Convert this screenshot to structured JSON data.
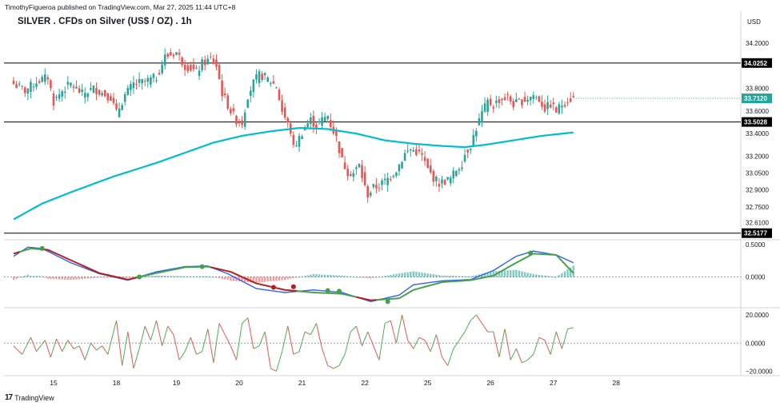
{
  "header": {
    "published": "TimothyFigueroa published on TradingView.com, Mar 27, 2025 11:44 UTC+8",
    "title": "SILVER . CFDs on Silver (US$ / OZ) . 1h",
    "currency": "USD"
  },
  "footer": {
    "logo_text": "TradingView"
  },
  "colors": {
    "bull": "#26a69a",
    "bear": "#ef5350",
    "ema": "#00bcd4",
    "macd": "#2962ff",
    "signal": "#b71c1c",
    "signal_green": "#43a047",
    "hist_pos": "#26a69a",
    "hist_neg": "#ef5350",
    "osc_up": "#4caf50",
    "osc_down": "#ef5350",
    "price_tag": "#000000"
  },
  "chart_data": [
    {
      "type": "candlestick",
      "pane": "price",
      "title": "SILVER . CFDs on Silver (US$ / OZ) . 1h",
      "ylim": [
        32.53,
        34.3
      ],
      "y_ticks": [
        34.2,
        33.8,
        33.6,
        33.4,
        33.2,
        33.05,
        32.9,
        32.75,
        32.61
      ],
      "y_tick_labels": [
        "34.2000",
        "33.8000",
        "33.6000",
        "33.4000",
        "33.2000",
        "33.0500",
        "32.9000",
        "32.7500",
        "32.6100"
      ],
      "x_ticks": [
        {
          "label": "15",
          "bar": 14
        },
        {
          "label": "18",
          "bar": 36
        },
        {
          "label": "19",
          "bar": 57
        },
        {
          "label": "20",
          "bar": 79
        },
        {
          "label": "21",
          "bar": 101
        },
        {
          "label": "22",
          "bar": 123
        },
        {
          "label": "25",
          "bar": 145
        },
        {
          "label": "26",
          "bar": 167
        },
        {
          "label": "27",
          "bar": 189
        },
        {
          "label": "28",
          "bar": 211
        }
      ],
      "horizontal_lines": [
        {
          "value": 34.0252,
          "label": "34.0252"
        },
        {
          "value": 33.5028,
          "label": "33.5028"
        },
        {
          "value": 32.5177,
          "label": "32.5177"
        }
      ],
      "last_price": {
        "value": 33.712,
        "label": "33.7120"
      },
      "close_anchors": [
        [
          0,
          33.84
        ],
        [
          4,
          33.78
        ],
        [
          8,
          33.86
        ],
        [
          12,
          33.9
        ],
        [
          14,
          33.68
        ],
        [
          17,
          33.78
        ],
        [
          20,
          33.84
        ],
        [
          24,
          33.75
        ],
        [
          28,
          33.8
        ],
        [
          31,
          33.76
        ],
        [
          34,
          33.72
        ],
        [
          36,
          33.58
        ],
        [
          39,
          33.74
        ],
        [
          42,
          33.84
        ],
        [
          46,
          33.86
        ],
        [
          50,
          33.9
        ],
        [
          53,
          34.08
        ],
        [
          55,
          34.1
        ],
        [
          57,
          34.12
        ],
        [
          60,
          34.0
        ],
        [
          62,
          33.98
        ],
        [
          64,
          33.94
        ],
        [
          66,
          34.02
        ],
        [
          69,
          34.06
        ],
        [
          71,
          34.0
        ],
        [
          73,
          33.76
        ],
        [
          76,
          33.6
        ],
        [
          78,
          33.52
        ],
        [
          80,
          33.5
        ],
        [
          82,
          33.74
        ],
        [
          84,
          33.85
        ],
        [
          86,
          33.92
        ],
        [
          88,
          33.9
        ],
        [
          90,
          33.86
        ],
        [
          92,
          33.82
        ],
        [
          94,
          33.6
        ],
        [
          97,
          33.42
        ],
        [
          98,
          33.27
        ],
        [
          100,
          33.36
        ],
        [
          102,
          33.46
        ],
        [
          104,
          33.52
        ],
        [
          106,
          33.47
        ],
        [
          108,
          33.52
        ],
        [
          110,
          33.56
        ],
        [
          111,
          33.48
        ],
        [
          113,
          33.36
        ],
        [
          115,
          33.16
        ],
        [
          117,
          33.06
        ],
        [
          119,
          33.05
        ],
        [
          121,
          33.12
        ],
        [
          123,
          32.92
        ],
        [
          124,
          32.86
        ],
        [
          126,
          32.92
        ],
        [
          128,
          32.94
        ],
        [
          131,
          33.0
        ],
        [
          134,
          33.08
        ],
        [
          137,
          33.22
        ],
        [
          139,
          33.26
        ],
        [
          141,
          33.24
        ],
        [
          143,
          33.2
        ],
        [
          145,
          33.08
        ],
        [
          147,
          33.01
        ],
        [
          149,
          32.96
        ],
        [
          151,
          32.98
        ],
        [
          153,
          33.0
        ],
        [
          155,
          33.08
        ],
        [
          157,
          33.14
        ],
        [
          158,
          33.22
        ],
        [
          160,
          33.3
        ],
        [
          162,
          33.45
        ],
        [
          164,
          33.58
        ],
        [
          166,
          33.68
        ],
        [
          168,
          33.65
        ],
        [
          170,
          33.7
        ],
        [
          173,
          33.72
        ],
        [
          175,
          33.66
        ],
        [
          177,
          33.68
        ],
        [
          179,
          33.7
        ],
        [
          182,
          33.74
        ],
        [
          184,
          33.7
        ],
        [
          186,
          33.62
        ],
        [
          188,
          33.66
        ],
        [
          190,
          33.6
        ],
        [
          192,
          33.66
        ],
        [
          194,
          33.7
        ],
        [
          196,
          33.71
        ]
      ],
      "ema_anchors": [
        [
          0,
          32.64
        ],
        [
          10,
          32.78
        ],
        [
          20,
          32.88
        ],
        [
          35,
          33.02
        ],
        [
          50,
          33.14
        ],
        [
          60,
          33.23
        ],
        [
          70,
          33.32
        ],
        [
          80,
          33.38
        ],
        [
          90,
          33.42
        ],
        [
          100,
          33.45
        ],
        [
          110,
          33.44
        ],
        [
          120,
          33.4
        ],
        [
          130,
          33.34
        ],
        [
          140,
          33.31
        ],
        [
          150,
          33.29
        ],
        [
          158,
          33.28
        ],
        [
          165,
          33.3
        ],
        [
          175,
          33.34
        ],
        [
          185,
          33.38
        ],
        [
          196,
          33.41
        ]
      ]
    },
    {
      "type": "line",
      "pane": "macd",
      "y_ticks": [
        0.5,
        0.0
      ],
      "y_tick_labels": [
        "0.5000",
        "0.0000"
      ],
      "ylim": [
        -0.45,
        0.55
      ],
      "series": [
        {
          "anchors": [
            [
              0,
              0.32
            ],
            [
              5,
              0.46
            ],
            [
              10,
              0.44
            ],
            [
              20,
              0.22
            ],
            [
              30,
              0.05
            ],
            [
              40,
              -0.05
            ],
            [
              50,
              0.08
            ],
            [
              60,
              0.16
            ],
            [
              68,
              0.17
            ],
            [
              75,
              0.05
            ],
            [
              85,
              -0.18
            ],
            [
              95,
              -0.24
            ],
            [
              105,
              -0.2
            ],
            [
              115,
              -0.24
            ],
            [
              125,
              -0.38
            ],
            [
              135,
              -0.28
            ],
            [
              140,
              -0.12
            ],
            [
              150,
              -0.06
            ],
            [
              160,
              -0.04
            ],
            [
              168,
              0.1
            ],
            [
              176,
              0.32
            ],
            [
              182,
              0.4
            ],
            [
              190,
              0.34
            ],
            [
              196,
              0.22
            ]
          ]
        },
        {
          "anchors": [
            [
              0,
              0.36
            ],
            [
              6,
              0.44
            ],
            [
              12,
              0.42
            ],
            [
              20,
              0.26
            ],
            [
              30,
              0.06
            ],
            [
              40,
              -0.04
            ],
            [
              50,
              0.06
            ],
            [
              60,
              0.15
            ],
            [
              68,
              0.16
            ],
            [
              76,
              0.08
            ],
            [
              85,
              -0.1
            ],
            [
              95,
              -0.2
            ],
            [
              105,
              -0.24
            ],
            [
              115,
              -0.26
            ],
            [
              125,
              -0.36
            ],
            [
              135,
              -0.33
            ],
            [
              140,
              -0.2
            ],
            [
              150,
              -0.08
            ],
            [
              160,
              -0.05
            ],
            [
              168,
              0.02
            ],
            [
              176,
              0.22
            ],
            [
              182,
              0.36
            ],
            [
              190,
              0.34
            ],
            [
              196,
              0.06
            ]
          ]
        }
      ],
      "cross_markers": [
        [
          10,
          0.44
        ],
        [
          44,
          0.0
        ],
        [
          66,
          0.16
        ],
        [
          91,
          -0.16
        ],
        [
          98,
          -0.15
        ],
        [
          110,
          -0.21
        ],
        [
          114,
          -0.22
        ],
        [
          131,
          -0.38
        ],
        [
          181,
          0.37
        ]
      ]
    },
    {
      "type": "line",
      "pane": "oscillator",
      "y_ticks": [
        20,
        0,
        -20
      ],
      "y_tick_labels": [
        "20.0000",
        "0.0000",
        "−20.0000"
      ],
      "ylim": [
        -22,
        24
      ],
      "series": [
        {
          "anchors": [
            [
              0,
              -2
            ],
            [
              3,
              -8
            ],
            [
              6,
              4
            ],
            [
              8,
              -6
            ],
            [
              11,
              2
            ],
            [
              13,
              -10
            ],
            [
              15,
              3
            ],
            [
              17,
              -6
            ],
            [
              19,
              2
            ],
            [
              21,
              -4
            ],
            [
              23,
              -2
            ],
            [
              25,
              -12
            ],
            [
              27,
              0
            ],
            [
              29,
              -5
            ],
            [
              31,
              -2
            ],
            [
              33,
              -8
            ],
            [
              36,
              16
            ],
            [
              38,
              -16
            ],
            [
              40,
              8
            ],
            [
              42,
              -18
            ],
            [
              44,
              -4
            ],
            [
              46,
              12
            ],
            [
              48,
              2
            ],
            [
              50,
              16
            ],
            [
              52,
              -2
            ],
            [
              54,
              12
            ],
            [
              56,
              6
            ],
            [
              58,
              -12
            ],
            [
              60,
              -6
            ],
            [
              62,
              4
            ],
            [
              64,
              -8
            ],
            [
              66,
              -6
            ],
            [
              68,
              10
            ],
            [
              70,
              -14
            ],
            [
              72,
              14
            ],
            [
              74,
              6
            ],
            [
              76,
              -2
            ],
            [
              78,
              -12
            ],
            [
              80,
              14
            ],
            [
              82,
              18
            ],
            [
              84,
              -4
            ],
            [
              86,
              -2
            ],
            [
              88,
              8
            ],
            [
              90,
              -18
            ],
            [
              92,
              -20
            ],
            [
              94,
              -6
            ],
            [
              96,
              12
            ],
            [
              98,
              -8
            ],
            [
              100,
              -6
            ],
            [
              102,
              8
            ],
            [
              104,
              6
            ],
            [
              106,
              14
            ],
            [
              108,
              -4
            ],
            [
              110,
              -16
            ],
            [
              112,
              -18
            ],
            [
              114,
              -16
            ],
            [
              116,
              -8
            ],
            [
              118,
              8
            ],
            [
              120,
              12
            ],
            [
              122,
              -2
            ],
            [
              124,
              8
            ],
            [
              126,
              -2
            ],
            [
              128,
              -12
            ],
            [
              130,
              14
            ],
            [
              132,
              16
            ],
            [
              134,
              0
            ],
            [
              136,
              20
            ],
            [
              138,
              2
            ],
            [
              140,
              -4
            ],
            [
              142,
              4
            ],
            [
              144,
              2
            ],
            [
              146,
              -6
            ],
            [
              148,
              6
            ],
            [
              150,
              -10
            ],
            [
              152,
              -16
            ],
            [
              154,
              -4
            ],
            [
              156,
              2
            ],
            [
              158,
              8
            ],
            [
              160,
              16
            ],
            [
              162,
              20
            ],
            [
              164,
              14
            ],
            [
              166,
              8
            ],
            [
              168,
              8
            ],
            [
              170,
              -10
            ],
            [
              172,
              10
            ],
            [
              174,
              -12
            ],
            [
              176,
              -4
            ],
            [
              178,
              -14
            ],
            [
              180,
              -12
            ],
            [
              182,
              -8
            ],
            [
              184,
              4
            ],
            [
              186,
              2
            ],
            [
              188,
              -8
            ],
            [
              190,
              8
            ],
            [
              192,
              -4
            ],
            [
              194,
              10
            ],
            [
              196,
              11
            ]
          ]
        }
      ],
      "dashed_zero": true
    }
  ]
}
